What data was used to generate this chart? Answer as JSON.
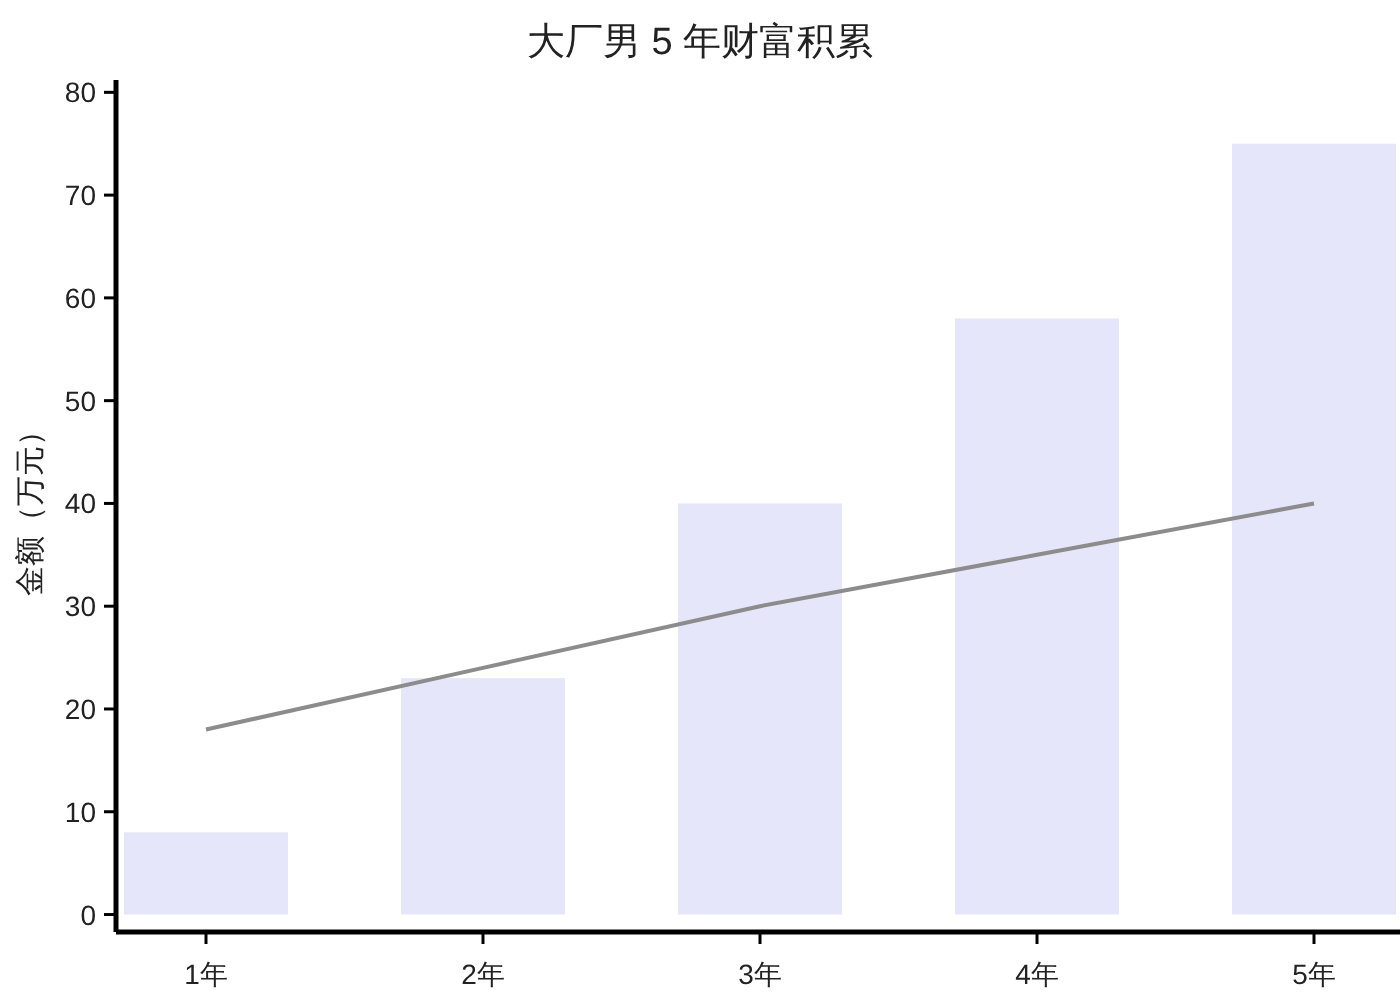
{
  "chart_data": {
    "type": "bar",
    "title": "大厂男 5 年财富积累",
    "ylabel": "金额（万元）",
    "categories": [
      "1年",
      "2年",
      "3年",
      "4年",
      "5年"
    ],
    "series": [
      {
        "color": "#e6e6fa",
        "values": [
          8,
          23,
          40,
          58,
          75
        ]
      },
      {
        "type": "line",
        "color": "#8c8c8c",
        "values": [
          18,
          24,
          30,
          35,
          40
        ]
      }
    ],
    "ylim": [
      -1.7,
      81.2
    ],
    "yticks": [
      0,
      10,
      20,
      30,
      40,
      50,
      60,
      70,
      80
    ],
    "grid": false,
    "marker": "none",
    "line_style": "solid"
  }
}
